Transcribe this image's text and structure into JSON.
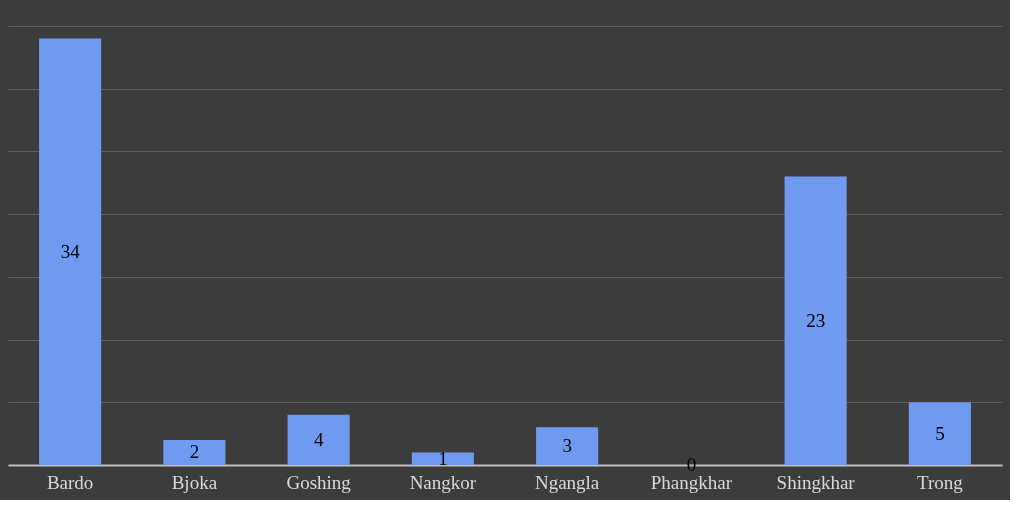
{
  "chart_data": {
    "type": "bar",
    "categories": [
      "Bardo",
      "Bjoka",
      "Goshing",
      "Nangkor",
      "Ngangla",
      "Phangkhar",
      "Shingkhar",
      "Trong"
    ],
    "values": [
      34,
      2,
      4,
      1,
      3,
      0,
      23,
      5
    ],
    "color": "#6f9af0",
    "ylim": [
      0,
      35
    ],
    "yticks": [
      {
        "value": 0,
        "label": null
      },
      {
        "value": 5,
        "label": null
      },
      {
        "value": 10,
        "label": null
      },
      {
        "value": 15,
        "label": null
      },
      {
        "value": 20,
        "label": null
      },
      {
        "value": 25,
        "label": null
      },
      {
        "value": 30,
        "label": null
      },
      {
        "value": 35,
        "label": null
      }
    ],
    "tick_labels": "x",
    "grid": "y",
    "data_labels": true
  }
}
